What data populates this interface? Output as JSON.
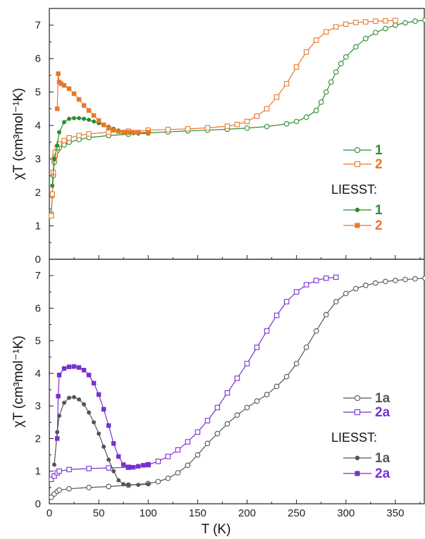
{
  "chart_data": [
    {
      "type": "line",
      "panel": "top",
      "xlabel": "",
      "ylabel": "χT (cm³mol⁻¹K)",
      "xlim": [
        0,
        380
      ],
      "ylim": [
        0,
        7.5
      ],
      "y_ticks": [
        0,
        1,
        2,
        3,
        4,
        5,
        6,
        7
      ],
      "legend": {
        "placement": "right",
        "heading": "LIESST:",
        "entries_main": [
          {
            "series": "1",
            "label": "1",
            "marker": "circle-open",
            "color": "#2e8b2e"
          },
          {
            "series": "2",
            "label": "2",
            "marker": "square-open",
            "color": "#e8782a"
          }
        ],
        "entries_liesst": [
          {
            "series": "1 LIESST",
            "label": "1",
            "marker": "circle-filled",
            "color": "#2e8b2e"
          },
          {
            "series": "2 LIESST",
            "label": "2",
            "marker": "square-filled",
            "color": "#e8782a"
          }
        ]
      },
      "series": [
        {
          "name": "1",
          "color": "#2e8b2e",
          "marker": "circle-open",
          "x": [
            2,
            3,
            4,
            5,
            6,
            8,
            10,
            15,
            20,
            30,
            40,
            60,
            80,
            100,
            120,
            140,
            160,
            180,
            200,
            220,
            240,
            250,
            260,
            270,
            275,
            280,
            285,
            290,
            295,
            300,
            310,
            320,
            330,
            340,
            350,
            360,
            370,
            380
          ],
          "y": [
            1.35,
            1.9,
            2.5,
            2.9,
            3.1,
            3.25,
            3.33,
            3.42,
            3.5,
            3.58,
            3.64,
            3.7,
            3.74,
            3.78,
            3.81,
            3.84,
            3.86,
            3.89,
            3.92,
            3.97,
            4.05,
            4.12,
            4.25,
            4.45,
            4.7,
            5.0,
            5.3,
            5.6,
            5.85,
            6.05,
            6.35,
            6.6,
            6.78,
            6.9,
            7.0,
            7.07,
            7.12,
            7.15
          ]
        },
        {
          "name": "2",
          "color": "#e8782a",
          "marker": "square-open",
          "x": [
            2,
            3,
            4,
            5,
            6,
            8,
            10,
            15,
            20,
            30,
            40,
            60,
            80,
            100,
            120,
            140,
            160,
            180,
            190,
            200,
            210,
            220,
            230,
            240,
            250,
            260,
            270,
            280,
            290,
            300,
            310,
            320,
            330,
            340,
            350
          ],
          "y": [
            1.3,
            1.95,
            2.6,
            3.0,
            3.2,
            3.35,
            3.45,
            3.55,
            3.63,
            3.7,
            3.75,
            3.8,
            3.83,
            3.86,
            3.88,
            3.9,
            3.93,
            3.98,
            4.03,
            4.12,
            4.28,
            4.5,
            4.85,
            5.25,
            5.75,
            6.2,
            6.55,
            6.8,
            6.95,
            7.03,
            7.08,
            7.1,
            7.12,
            7.13,
            7.14
          ]
        },
        {
          "name": "1 LIESST",
          "color": "#2e8b2e",
          "marker": "circle-filled",
          "x": [
            3,
            5,
            8,
            10,
            15,
            20,
            25,
            30,
            35,
            40,
            45,
            50,
            55,
            60,
            65,
            70,
            75,
            80,
            85,
            90,
            100
          ],
          "y": [
            2.2,
            3.0,
            3.4,
            3.8,
            4.1,
            4.2,
            4.22,
            4.22,
            4.2,
            4.17,
            4.12,
            4.07,
            4.01,
            3.96,
            3.9,
            3.85,
            3.81,
            3.78,
            3.77,
            3.76,
            3.76
          ]
        },
        {
          "name": "2 LIESST",
          "color": "#e8782a",
          "marker": "square-filled",
          "x": [
            8,
            9,
            10,
            12,
            15,
            20,
            25,
            30,
            35,
            40,
            45,
            50,
            55,
            60,
            65,
            70,
            75,
            80,
            85,
            90,
            100
          ],
          "y": [
            4.5,
            5.55,
            5.3,
            5.25,
            5.2,
            5.1,
            4.95,
            4.78,
            4.6,
            4.45,
            4.3,
            4.15,
            4.02,
            3.92,
            3.86,
            3.82,
            3.8,
            3.8,
            3.8,
            3.8,
            3.8
          ]
        }
      ]
    },
    {
      "type": "line",
      "panel": "bottom",
      "xlabel": "T (K)",
      "ylabel": "χT (cm³mol⁻¹K)",
      "xlim": [
        0,
        380
      ],
      "ylim": [
        0,
        7.5
      ],
      "x_ticks": [
        0,
        50,
        100,
        150,
        200,
        250,
        300,
        350
      ],
      "y_ticks": [
        0,
        1,
        2,
        3,
        4,
        5,
        6,
        7
      ],
      "legend": {
        "placement": "right",
        "heading": "LIESST:",
        "entries_main": [
          {
            "series": "1a",
            "label": "1a",
            "marker": "circle-open",
            "color": "#555555"
          },
          {
            "series": "2a",
            "label": "2a",
            "marker": "square-open",
            "color": "#7a2fd0"
          }
        ],
        "entries_liesst": [
          {
            "series": "1a LIESST",
            "label": "1a",
            "marker": "circle-filled",
            "color": "#555555"
          },
          {
            "series": "2a LIESST",
            "label": "2a",
            "marker": "square-filled",
            "color": "#7a2fd0"
          }
        ]
      },
      "series": [
        {
          "name": "1a",
          "color": "#555555",
          "marker": "circle-open",
          "x": [
            2,
            5,
            8,
            10,
            20,
            40,
            60,
            80,
            100,
            110,
            120,
            130,
            140,
            150,
            160,
            170,
            180,
            190,
            200,
            210,
            220,
            230,
            240,
            250,
            260,
            270,
            280,
            290,
            300,
            310,
            320,
            330,
            340,
            350,
            360,
            370,
            380
          ],
          "y": [
            0.2,
            0.3,
            0.38,
            0.42,
            0.46,
            0.5,
            0.53,
            0.57,
            0.62,
            0.68,
            0.78,
            0.95,
            1.18,
            1.5,
            1.85,
            2.15,
            2.45,
            2.72,
            2.95,
            3.15,
            3.35,
            3.6,
            3.9,
            4.3,
            4.8,
            5.3,
            5.8,
            6.2,
            6.45,
            6.6,
            6.7,
            6.77,
            6.82,
            6.85,
            6.88,
            6.9,
            6.92
          ]
        },
        {
          "name": "2a",
          "color": "#7a2fd0",
          "marker": "square-open",
          "x": [
            2,
            5,
            8,
            10,
            20,
            40,
            60,
            80,
            100,
            110,
            120,
            130,
            140,
            150,
            160,
            170,
            180,
            190,
            200,
            210,
            220,
            230,
            240,
            250,
            260,
            270,
            280,
            290
          ],
          "y": [
            0.75,
            0.85,
            0.95,
            1.0,
            1.05,
            1.08,
            1.1,
            1.12,
            1.2,
            1.3,
            1.45,
            1.65,
            1.9,
            2.2,
            2.55,
            2.95,
            3.4,
            3.85,
            4.3,
            4.8,
            5.3,
            5.78,
            6.2,
            6.5,
            6.72,
            6.85,
            6.92,
            6.95
          ]
        },
        {
          "name": "1a LIESST",
          "color": "#555555",
          "marker": "circle-filled",
          "x": [
            5,
            8,
            10,
            15,
            20,
            25,
            30,
            35,
            40,
            45,
            50,
            55,
            60,
            65,
            70,
            75,
            80,
            90,
            100
          ],
          "y": [
            1.2,
            2.2,
            2.7,
            3.1,
            3.25,
            3.27,
            3.2,
            3.05,
            2.8,
            2.5,
            2.15,
            1.75,
            1.35,
            1.0,
            0.72,
            0.6,
            0.58,
            0.58,
            0.6
          ]
        },
        {
          "name": "2a LIESST",
          "color": "#7a2fd0",
          "marker": "square-filled",
          "x": [
            8,
            9,
            10,
            15,
            20,
            25,
            30,
            35,
            40,
            45,
            50,
            55,
            60,
            65,
            70,
            75,
            80,
            85,
            90,
            95,
            100
          ],
          "y": [
            2.0,
            3.3,
            3.95,
            4.15,
            4.2,
            4.21,
            4.18,
            4.1,
            3.95,
            3.7,
            3.35,
            2.9,
            2.4,
            1.85,
            1.45,
            1.2,
            1.12,
            1.12,
            1.15,
            1.18,
            1.2
          ]
        }
      ]
    }
  ]
}
